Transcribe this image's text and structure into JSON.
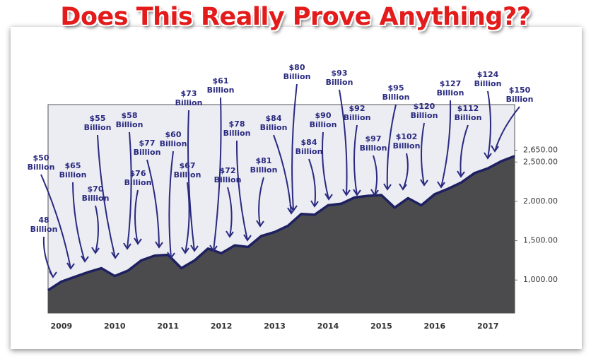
{
  "chart_data": {
    "type": "area",
    "title": "Does This Really Prove Anything??",
    "categories": [
      null,
      "2009",
      null,
      null,
      null,
      "2010",
      null,
      null,
      null,
      "2011",
      null,
      null,
      null,
      "2012",
      null,
      null,
      null,
      "2013",
      null,
      null,
      null,
      "2014",
      null,
      null,
      null,
      "2015",
      null,
      null,
      null,
      "2016",
      null,
      null,
      null,
      "2017",
      null,
      null
    ],
    "series": [
      {
        "color": "#1e2060",
        "values": [
          870,
          980,
          1040,
          1100,
          1150,
          1050,
          1120,
          1250,
          1310,
          1320,
          1150,
          1250,
          1400,
          1340,
          1440,
          1420,
          1560,
          1610,
          1690,
          1840,
          1830,
          1950,
          1970,
          2050,
          2070,
          2080,
          1920,
          2040,
          1950,
          2090,
          2160,
          2240,
          2360,
          2420,
          2510,
          2575
        ]
      }
    ],
    "ylim": [
      580,
      3230
    ],
    "yticks": [
      {
        "value": 1000,
        "label": "1,000.00"
      },
      {
        "value": 1500,
        "label": "1,500.00"
      },
      {
        "value": 2000,
        "label": "2,000.00"
      },
      {
        "value": 2500,
        "label": "2,500.00"
      },
      {
        "value": 2650,
        "label": "2,650.00"
      }
    ],
    "annotations": [
      "48 Billion",
      "$50 Billion",
      "$65 Billion",
      "$70 Billion",
      "$55 Billion",
      "$58 Billion",
      "$76 Billion",
      "$77 Billion",
      "$60 Billion",
      "$67 Billion",
      "$73 Billion",
      "$61 Billion",
      "$78 Billion",
      "$72 Billion",
      "$81 Billion",
      "$84 Billion",
      "$80 Billion",
      "$84 Billion",
      "$90 Billion",
      "$93 Billion",
      "$92 Billion",
      "$97 Billion",
      "$95 Billion",
      "$102 Billion",
      "$120 Billion",
      "$127 Billion",
      "$112 Billion",
      "$124 Billion",
      "$150 Billion"
    ]
  }
}
